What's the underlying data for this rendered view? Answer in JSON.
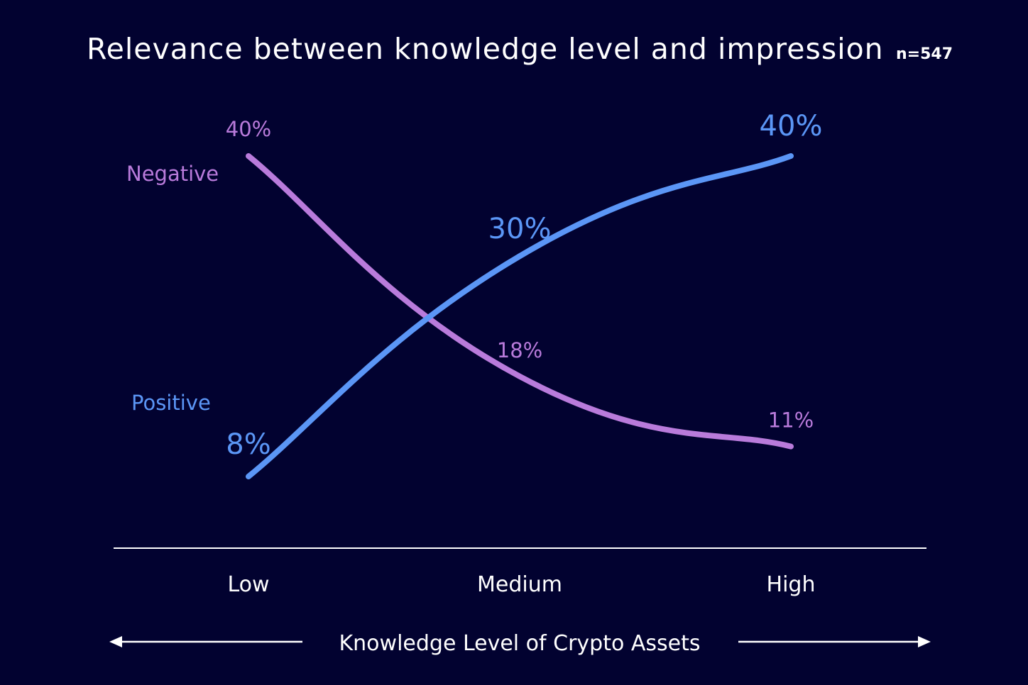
{
  "chart_data": {
    "type": "line",
    "title": "Relevance between knowledge level and impression",
    "subtitle": "n=547",
    "categories": [
      "Low",
      "Medium",
      "High"
    ],
    "xlabel": "Knowledge Level of Crypto Assets",
    "ylabel": "",
    "ylim": [
      0,
      45
    ],
    "grid": false,
    "series": [
      {
        "name": "Negative",
        "values": [
          40,
          18,
          11
        ],
        "labels": [
          "40%",
          "18%",
          "11%"
        ],
        "color": "#b97bdb"
      },
      {
        "name": "Positive",
        "values": [
          8,
          30,
          40
        ],
        "labels": [
          "8%",
          "30%",
          "40%"
        ],
        "color": "#5b96f6"
      }
    ]
  },
  "colors": {
    "background": "#020230",
    "text": "#ffffff",
    "negative": "#b97bdb",
    "positive": "#5b96f6"
  }
}
